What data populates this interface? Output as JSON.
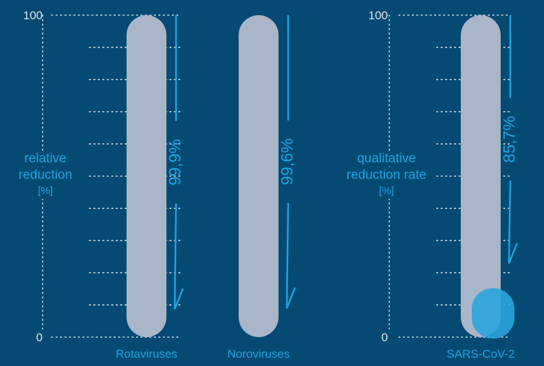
{
  "colors": {
    "background": "#044a73",
    "bar": "#a9b5c8",
    "accent": "#1fa3e0",
    "axis_text": "#dfe6ee",
    "grid": "#dfe6ee",
    "residual": "#2aa4dc"
  },
  "chart_data": [
    {
      "type": "bar",
      "ylabel": "relative reduction [%]",
      "ylabel_lines": [
        "relative",
        "reduction",
        "[%]"
      ],
      "ylim": [
        0,
        100
      ],
      "y_ticks": [
        "100",
        "0"
      ],
      "grid": true,
      "categories": [
        "Rotaviruses",
        "Noroviruses"
      ],
      "values": [
        100,
        100
      ],
      "residual": [
        0.1,
        0.4
      ],
      "annotations": [
        "99,9%",
        "99,6%"
      ]
    },
    {
      "type": "bar",
      "ylabel": "qualitative reduction rate [%]",
      "ylabel_lines": [
        "qualitative",
        "reduction rate",
        "[%]"
      ],
      "ylim": [
        0,
        100
      ],
      "y_ticks": [
        "100",
        "0"
      ],
      "grid": true,
      "categories": [
        "SARS-CoV-2"
      ],
      "values": [
        100
      ],
      "residual": [
        14.3
      ],
      "annotations": [
        "85,7%"
      ]
    }
  ]
}
